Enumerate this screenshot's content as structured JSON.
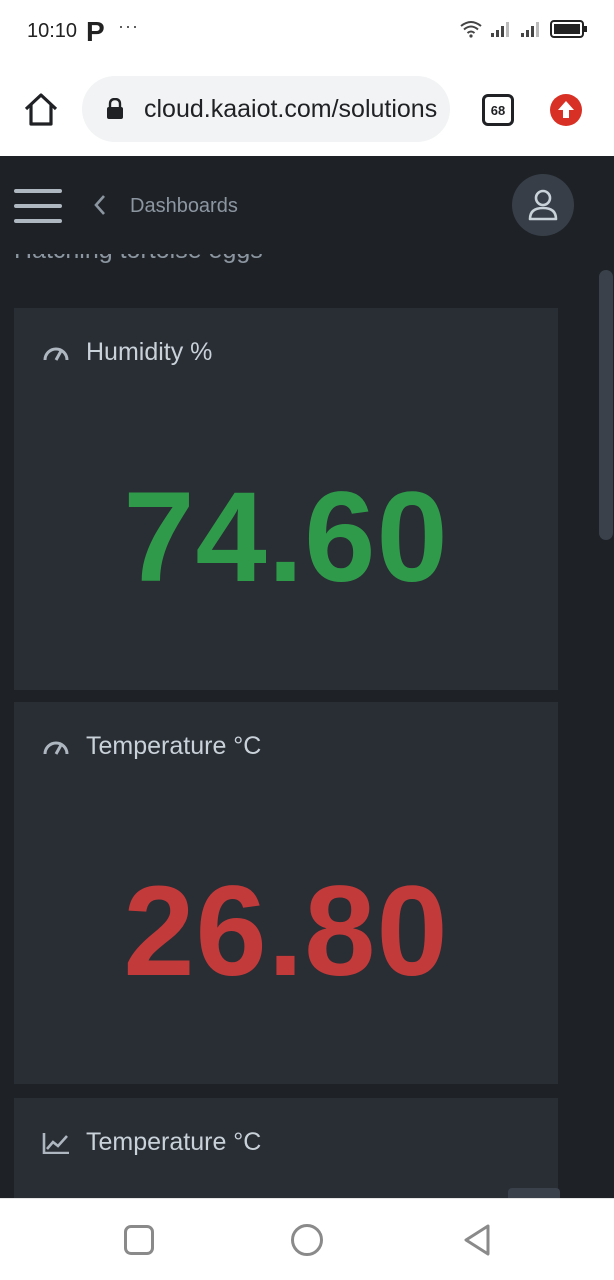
{
  "status_bar": {
    "time": "10:10",
    "app_letter": "P",
    "more": "···"
  },
  "browser": {
    "url": "cloud.kaaiot.com/solutions",
    "tab_count": "68",
    "update_color": "#d93025"
  },
  "app_header": {
    "breadcrumb": "Dashboards",
    "menu_icon": "hamburger-menu-icon",
    "back_icon": "chevron-left-icon",
    "avatar_icon": "user-icon"
  },
  "page": {
    "title": "Hatching tortoise eggs"
  },
  "widgets": [
    {
      "title": "Humidity %",
      "value": "74.60",
      "icon": "gauge-icon",
      "value_color": "#2f9a4a"
    },
    {
      "title": "Temperature °C",
      "value": "26.80",
      "icon": "gauge-icon",
      "value_color": "#c23a3a"
    },
    {
      "title": "Temperature °C",
      "icon": "line-chart-icon"
    }
  ],
  "colors": {
    "app_background": "#1e2227",
    "card_background": "#292d34",
    "humidity_value": "#2f9a4a",
    "temperature_value": "#c23a3a"
  }
}
